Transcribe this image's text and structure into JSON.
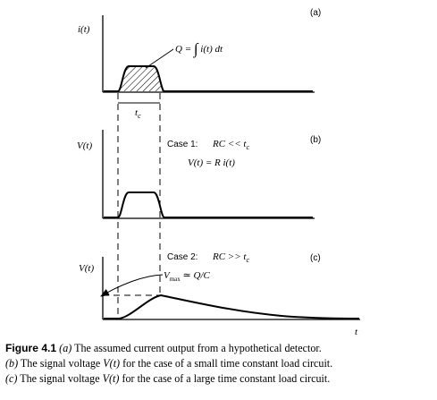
{
  "panel_a": {
    "y_label": "i(t)",
    "tag": "(a)",
    "q_eq": "Q = ",
    "q_int": "∫",
    "q_rhs": " i(t) dt",
    "tc_label": "t",
    "tc_sub": "c"
  },
  "panel_b": {
    "y_label": "V(t)",
    "tag": "(b)",
    "case_label": "Case 1:",
    "cond_lhs": "RC << t",
    "cond_sub": "c",
    "formula": "V(t) = R i(t)"
  },
  "panel_c": {
    "y_label": "V(t)",
    "tag": "(c)",
    "case_label": "Case 2:",
    "cond_lhs": "RC >> t",
    "cond_sub": "c",
    "vmax_label": "V",
    "vmax_sub": "max",
    "vmax_rhs": " ≃ Q/C",
    "x_label": "t"
  },
  "caption": {
    "fig_label": "Figure 4.1",
    "line1_tag": "(a)",
    "line1_text": " The assumed current output from a hypothetical detector.",
    "line2_tag": "(b)",
    "line2_a": " The signal voltage ",
    "line2_v": "V(t)",
    "line2_b": " for the case of a small time constant load circuit.",
    "line3_tag": "(c)",
    "line3_a": " The signal voltage ",
    "line3_v": "V(t)",
    "line3_b": " for the case of a large time constant load circuit."
  }
}
